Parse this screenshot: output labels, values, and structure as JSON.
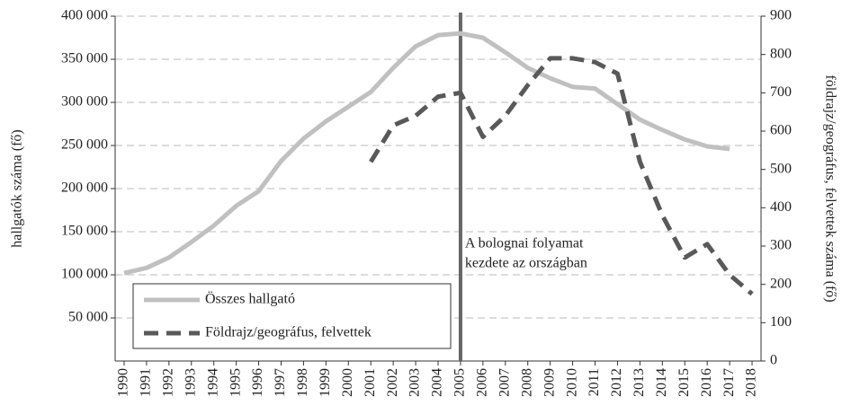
{
  "chart_data": {
    "type": "line",
    "x": [
      1990,
      1991,
      1992,
      1993,
      1994,
      1995,
      1996,
      1997,
      1998,
      1999,
      2000,
      2001,
      2002,
      2003,
      2004,
      2005,
      2006,
      2007,
      2008,
      2009,
      2010,
      2011,
      2012,
      2013,
      2014,
      2015,
      2016,
      2017,
      2018
    ],
    "xlim": [
      1989.6,
      2018.4
    ],
    "xticks": [
      1990,
      1991,
      1992,
      1993,
      1994,
      1995,
      1996,
      1997,
      1998,
      1999,
      2000,
      2001,
      2002,
      2003,
      2004,
      2005,
      2006,
      2007,
      2008,
      2009,
      2010,
      2011,
      2012,
      2013,
      2014,
      2015,
      2016,
      2017,
      2018
    ],
    "series": [
      {
        "name": "Összes hallgató",
        "color": "#c0c0c0",
        "values": [
          102000,
          108000,
          120000,
          138000,
          157000,
          180000,
          197000,
          232000,
          258000,
          278000,
          295000,
          312000,
          340000,
          365000,
          378000,
          380000,
          375000,
          358000,
          340000,
          328000,
          318000,
          316000,
          298000,
          280000,
          268000,
          257000,
          249000,
          246000,
          null
        ]
      },
      {
        "name": "Földrajz/geográfus, felvettek",
        "color": "#595959",
        "axis": "y2",
        "values": [
          null,
          null,
          null,
          null,
          null,
          null,
          null,
          null,
          null,
          null,
          null,
          520,
          615,
          640,
          690,
          700,
          585,
          640,
          720,
          790,
          790,
          780,
          750,
          520,
          380,
          270,
          305,
          225,
          175
        ]
      }
    ],
    "ylabel": "hallgatók száma (fő)",
    "y2label": "földrajz/geográfus, felvettek száma (fő)",
    "ylim": [
      0,
      400000
    ],
    "yticks": [
      {
        "value": 50000,
        "label": "50 000"
      },
      {
        "value": 100000,
        "label": "100 000"
      },
      {
        "value": 150000,
        "label": "150 000"
      },
      {
        "value": 200000,
        "label": "200 000"
      },
      {
        "value": 250000,
        "label": "250 000"
      },
      {
        "value": 300000,
        "label": "300 000"
      },
      {
        "value": 350000,
        "label": "350 000"
      },
      {
        "value": 400000,
        "label": "400 000"
      }
    ],
    "y2lim": [
      0,
      900
    ],
    "y2ticks": [
      0,
      100,
      200,
      300,
      400,
      500,
      600,
      700,
      800,
      900
    ],
    "grid": true,
    "legend": "lower left",
    "annotation": {
      "x": 2005,
      "lines": [
        "A bolognai folyamat",
        "kezdete az országban"
      ]
    }
  }
}
